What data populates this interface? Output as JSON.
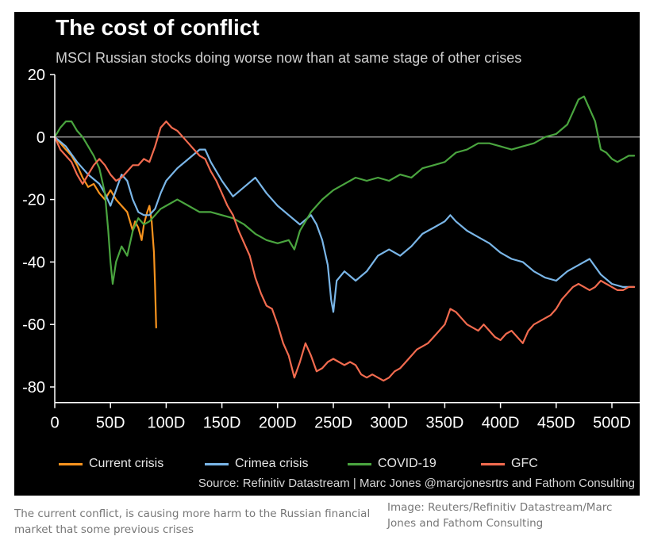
{
  "title": "The cost of conflict",
  "subtitle": "MSCI Russian stocks doing worse now than at same stage of other crises",
  "source": "Source: Refinitiv Datastream | Marc Jones @marcjonesrtrs and Fathom Consulting",
  "caption": "The current conflict, is causing more harm to the Russian financial market that some previous crises",
  "credit": "Image: Reuters/Refinitiv Datastream/Marc Jones and Fathom Consulting",
  "colors": {
    "background": "#000000",
    "zero_line": "#bfbfbf",
    "axis": "#ffffff"
  },
  "chart_data": {
    "type": "line",
    "title": "The cost of conflict",
    "subtitle": "MSCI Russian stocks doing worse now than at same stage of other crises",
    "xlim": [
      0,
      525
    ],
    "ylim": [
      -85,
      20
    ],
    "x_ticks": [
      0,
      50,
      100,
      150,
      200,
      250,
      300,
      350,
      400,
      450,
      500
    ],
    "x_tick_labels": [
      "0",
      "50D",
      "100D",
      "150D",
      "200D",
      "250D",
      "300D",
      "350D",
      "400D",
      "450D",
      "500D"
    ],
    "y_ticks": [
      20,
      0,
      -20,
      -40,
      -60,
      -80
    ],
    "y_tick_labels": [
      "20",
      "0",
      "-20",
      "-40",
      "-60",
      "-80"
    ],
    "reference_line": 0,
    "legend_position": "bottom",
    "series": [
      {
        "name": "Current crisis",
        "color": "#f7931e",
        "points": [
          [
            0,
            0
          ],
          [
            5,
            -2
          ],
          [
            10,
            -4
          ],
          [
            15,
            -6
          ],
          [
            20,
            -9
          ],
          [
            25,
            -13
          ],
          [
            30,
            -16
          ],
          [
            35,
            -15
          ],
          [
            40,
            -18
          ],
          [
            45,
            -20
          ],
          [
            50,
            -17
          ],
          [
            55,
            -20
          ],
          [
            60,
            -22
          ],
          [
            65,
            -24
          ],
          [
            70,
            -30
          ],
          [
            72,
            -27
          ],
          [
            75,
            -29
          ],
          [
            78,
            -33
          ],
          [
            80,
            -28
          ],
          [
            83,
            -24
          ],
          [
            85,
            -22
          ],
          [
            87,
            -27
          ],
          [
            89,
            -37
          ],
          [
            90,
            -48
          ],
          [
            91,
            -61
          ]
        ]
      },
      {
        "name": "Crimea crisis",
        "color": "#7ab6e8",
        "points": [
          [
            0,
            0
          ],
          [
            10,
            -3
          ],
          [
            20,
            -8
          ],
          [
            30,
            -12
          ],
          [
            40,
            -15
          ],
          [
            45,
            -18
          ],
          [
            50,
            -22
          ],
          [
            55,
            -17
          ],
          [
            60,
            -12
          ],
          [
            65,
            -14
          ],
          [
            70,
            -20
          ],
          [
            75,
            -24
          ],
          [
            80,
            -25
          ],
          [
            85,
            -25
          ],
          [
            90,
            -23
          ],
          [
            95,
            -18
          ],
          [
            100,
            -14
          ],
          [
            110,
            -10
          ],
          [
            120,
            -7
          ],
          [
            130,
            -4
          ],
          [
            135,
            -4
          ],
          [
            140,
            -8
          ],
          [
            150,
            -14
          ],
          [
            160,
            -19
          ],
          [
            170,
            -16
          ],
          [
            180,
            -13
          ],
          [
            190,
            -18
          ],
          [
            200,
            -22
          ],
          [
            210,
            -25
          ],
          [
            220,
            -28
          ],
          [
            230,
            -25
          ],
          [
            235,
            -28
          ],
          [
            240,
            -33
          ],
          [
            245,
            -41
          ],
          [
            248,
            -52
          ],
          [
            250,
            -56
          ],
          [
            253,
            -46
          ],
          [
            260,
            -43
          ],
          [
            270,
            -46
          ],
          [
            280,
            -43
          ],
          [
            290,
            -38
          ],
          [
            300,
            -36
          ],
          [
            310,
            -38
          ],
          [
            320,
            -35
          ],
          [
            330,
            -31
          ],
          [
            340,
            -29
          ],
          [
            350,
            -27
          ],
          [
            355,
            -25
          ],
          [
            360,
            -27
          ],
          [
            370,
            -30
          ],
          [
            380,
            -32
          ],
          [
            390,
            -34
          ],
          [
            400,
            -37
          ],
          [
            410,
            -39
          ],
          [
            420,
            -40
          ],
          [
            430,
            -43
          ],
          [
            440,
            -45
          ],
          [
            450,
            -46
          ],
          [
            460,
            -43
          ],
          [
            470,
            -41
          ],
          [
            480,
            -39
          ],
          [
            490,
            -44
          ],
          [
            500,
            -47
          ],
          [
            510,
            -48
          ],
          [
            520,
            -48
          ]
        ]
      },
      {
        "name": "COVID-19",
        "color": "#4aa53f",
        "points": [
          [
            0,
            0
          ],
          [
            5,
            3
          ],
          [
            10,
            5
          ],
          [
            15,
            5
          ],
          [
            20,
            2
          ],
          [
            25,
            0
          ],
          [
            30,
            -3
          ],
          [
            35,
            -6
          ],
          [
            40,
            -10
          ],
          [
            45,
            -18
          ],
          [
            48,
            -30
          ],
          [
            50,
            -40
          ],
          [
            52,
            -47
          ],
          [
            55,
            -40
          ],
          [
            60,
            -35
          ],
          [
            65,
            -38
          ],
          [
            70,
            -30
          ],
          [
            75,
            -26
          ],
          [
            80,
            -28
          ],
          [
            85,
            -27
          ],
          [
            90,
            -25
          ],
          [
            95,
            -23
          ],
          [
            100,
            -22
          ],
          [
            110,
            -20
          ],
          [
            120,
            -22
          ],
          [
            130,
            -24
          ],
          [
            140,
            -24
          ],
          [
            150,
            -25
          ],
          [
            160,
            -26
          ],
          [
            170,
            -28
          ],
          [
            180,
            -31
          ],
          [
            190,
            -33
          ],
          [
            200,
            -34
          ],
          [
            210,
            -33
          ],
          [
            215,
            -36
          ],
          [
            220,
            -30
          ],
          [
            225,
            -27
          ],
          [
            230,
            -24
          ],
          [
            240,
            -20
          ],
          [
            250,
            -17
          ],
          [
            260,
            -15
          ],
          [
            270,
            -13
          ],
          [
            280,
            -14
          ],
          [
            290,
            -13
          ],
          [
            300,
            -14
          ],
          [
            310,
            -12
          ],
          [
            320,
            -13
          ],
          [
            330,
            -10
          ],
          [
            340,
            -9
          ],
          [
            350,
            -8
          ],
          [
            360,
            -5
          ],
          [
            370,
            -4
          ],
          [
            380,
            -2
          ],
          [
            390,
            -2
          ],
          [
            400,
            -3
          ],
          [
            410,
            -4
          ],
          [
            420,
            -3
          ],
          [
            430,
            -2
          ],
          [
            440,
            0
          ],
          [
            450,
            1
          ],
          [
            460,
            4
          ],
          [
            465,
            8
          ],
          [
            470,
            12
          ],
          [
            475,
            13
          ],
          [
            480,
            9
          ],
          [
            485,
            5
          ],
          [
            490,
            -4
          ],
          [
            495,
            -5
          ],
          [
            500,
            -7
          ],
          [
            505,
            -8
          ],
          [
            510,
            -7
          ],
          [
            515,
            -6
          ],
          [
            520,
            -6
          ]
        ]
      },
      {
        "name": "GFC",
        "color": "#f26b4f",
        "points": [
          [
            0,
            0
          ],
          [
            5,
            -4
          ],
          [
            10,
            -6
          ],
          [
            15,
            -8
          ],
          [
            20,
            -12
          ],
          [
            25,
            -15
          ],
          [
            30,
            -12
          ],
          [
            35,
            -9
          ],
          [
            40,
            -7
          ],
          [
            45,
            -9
          ],
          [
            50,
            -12
          ],
          [
            55,
            -14
          ],
          [
            60,
            -13
          ],
          [
            65,
            -11
          ],
          [
            70,
            -9
          ],
          [
            75,
            -9
          ],
          [
            80,
            -7
          ],
          [
            85,
            -8
          ],
          [
            90,
            -3
          ],
          [
            95,
            3
          ],
          [
            100,
            5
          ],
          [
            105,
            3
          ],
          [
            110,
            2
          ],
          [
            115,
            0
          ],
          [
            120,
            -2
          ],
          [
            125,
            -4
          ],
          [
            130,
            -6
          ],
          [
            135,
            -7
          ],
          [
            140,
            -11
          ],
          [
            145,
            -14
          ],
          [
            150,
            -18
          ],
          [
            155,
            -22
          ],
          [
            160,
            -25
          ],
          [
            165,
            -30
          ],
          [
            170,
            -34
          ],
          [
            175,
            -38
          ],
          [
            180,
            -45
          ],
          [
            185,
            -50
          ],
          [
            190,
            -54
          ],
          [
            195,
            -55
          ],
          [
            200,
            -60
          ],
          [
            205,
            -66
          ],
          [
            210,
            -70
          ],
          [
            215,
            -77
          ],
          [
            220,
            -72
          ],
          [
            225,
            -66
          ],
          [
            230,
            -70
          ],
          [
            235,
            -75
          ],
          [
            240,
            -74
          ],
          [
            245,
            -72
          ],
          [
            250,
            -71
          ],
          [
            255,
            -72
          ],
          [
            260,
            -73
          ],
          [
            265,
            -72
          ],
          [
            270,
            -73
          ],
          [
            275,
            -76
          ],
          [
            280,
            -77
          ],
          [
            285,
            -76
          ],
          [
            290,
            -77
          ],
          [
            295,
            -78
          ],
          [
            300,
            -77
          ],
          [
            305,
            -75
          ],
          [
            310,
            -74
          ],
          [
            315,
            -72
          ],
          [
            320,
            -70
          ],
          [
            325,
            -68
          ],
          [
            330,
            -67
          ],
          [
            335,
            -66
          ],
          [
            340,
            -64
          ],
          [
            345,
            -62
          ],
          [
            350,
            -60
          ],
          [
            355,
            -55
          ],
          [
            360,
            -56
          ],
          [
            365,
            -58
          ],
          [
            370,
            -60
          ],
          [
            375,
            -61
          ],
          [
            380,
            -62
          ],
          [
            385,
            -60
          ],
          [
            390,
            -62
          ],
          [
            395,
            -64
          ],
          [
            400,
            -65
          ],
          [
            405,
            -63
          ],
          [
            410,
            -62
          ],
          [
            415,
            -64
          ],
          [
            420,
            -66
          ],
          [
            425,
            -62
          ],
          [
            430,
            -60
          ],
          [
            435,
            -59
          ],
          [
            440,
            -58
          ],
          [
            445,
            -57
          ],
          [
            450,
            -55
          ],
          [
            455,
            -52
          ],
          [
            460,
            -50
          ],
          [
            465,
            -48
          ],
          [
            470,
            -47
          ],
          [
            475,
            -48
          ],
          [
            480,
            -49
          ],
          [
            485,
            -48
          ],
          [
            490,
            -46
          ],
          [
            495,
            -47
          ],
          [
            500,
            -48
          ],
          [
            505,
            -49
          ],
          [
            510,
            -49
          ],
          [
            515,
            -48
          ],
          [
            520,
            -48
          ]
        ]
      }
    ]
  }
}
